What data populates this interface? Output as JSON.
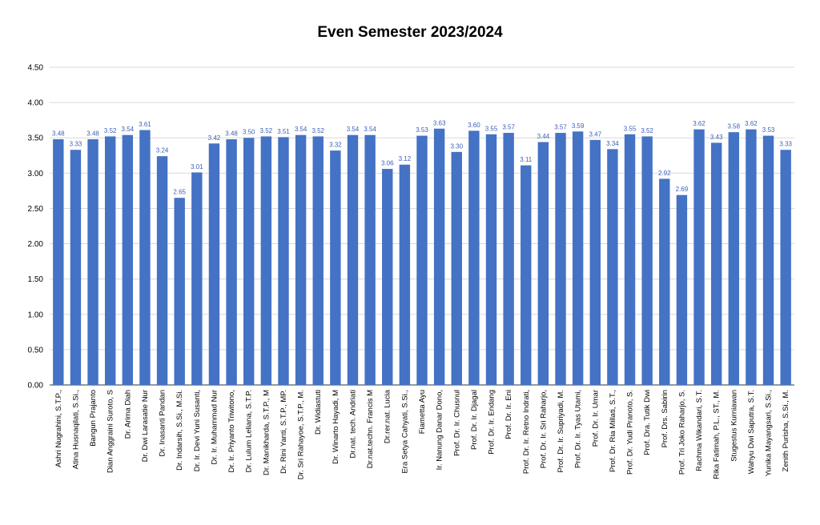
{
  "chart_data": {
    "type": "bar",
    "title": "Even Semester 2023/2024",
    "xlabel": "",
    "ylabel": "",
    "ylim": [
      0,
      4.5
    ],
    "yticks": [
      "0.00",
      "0.50",
      "1.00",
      "1.50",
      "2.00",
      "2.50",
      "3.00",
      "3.50",
      "4.00",
      "4.50"
    ],
    "grid": true,
    "bar_color": "#4472c4",
    "label_color": "#3b5fb8",
    "categories": [
      "Ashri Nugrahini, S.T.P.,",
      "Atina Husnaqilati, S.Si.,",
      "Bangun Prajanto",
      "Dian Anggraini Suroto, S",
      "Dr. Arima Diah",
      "Dr. Dwi Larasatie Nur",
      "Dr. Inasanti Pandan",
      "Dr. Indarsih, S.Si., M.Si.",
      "Dr. Ir. Devi Yuni Susanti,",
      "Dr. Ir. Muhammad Nur",
      "Dr. Ir. Priyanto Triwitono,",
      "Dr. Lulum Leliana, S.T.P.",
      "Dr. Manikharda, S.T.P., M",
      "Dr. Rini Yanti, S.T.P., MP.",
      "Dr. Sri Rahayoe, S.T.P., M.",
      "Dr. Widiastuti",
      "Dr. Winarto Hayadi, M",
      "Dr.nat. tech. Andriati",
      "Dr.nat.techn. Francis M",
      "Dr.rer.nat. Lucia",
      "Era Setya Cahyati, S.Si.,",
      "Fiametta Ayu",
      "Ir. Nanung Danar Dono,",
      "Prof. Dr. Ir. Chusnul",
      "Prof. Dr. Ir. Djagal",
      "Prof. Dr. Ir. Endang",
      "Prof. Dr. Ir. Eni",
      "Prof. Dr. Ir. Retno Indrati,",
      "Prof. Dr. Ir. Sri Raharjo,",
      "Prof. Dr. Ir. Supriyadi, M.",
      "Prof. Dr. Ir. Tyas Utami,",
      "Prof. Dr. Ir. Umar",
      "Prof. Dr. Ria Millati, S.T.,",
      "Prof. Dr. Yudi Pranoto, S.",
      "Prof. Dra. Tutik Dwi",
      "Prof. Drs. Sabirin",
      "Prof. Tri Joko Raharjo, S.",
      "Rachma Wikandari, S.T.",
      "Rika Fatimah, P.L., ST., M.",
      "Stugestus Kurniawan",
      "Wahyu Dwi Saputra, S.T.",
      "Yunika Mayangsari, S.Si.,",
      "Zenith Purisha, S.Si., M."
    ],
    "values": [
      3.48,
      3.33,
      3.48,
      3.52,
      3.54,
      3.61,
      3.24,
      2.65,
      3.01,
      3.42,
      3.48,
      3.5,
      3.52,
      3.51,
      3.54,
      3.52,
      3.32,
      3.54,
      3.54,
      3.06,
      3.12,
      3.53,
      3.63,
      3.3,
      3.6,
      3.55,
      3.57,
      3.11,
      3.44,
      3.57,
      3.59,
      3.47,
      3.34,
      3.55,
      3.52,
      2.92,
      2.69,
      3.62,
      3.43,
      3.58,
      3.62,
      3.53,
      3.33
    ],
    "value_labels": [
      "3.48",
      "3.33",
      "3.48",
      "3.52",
      "3.54",
      "3.61",
      "3.24",
      "2.65",
      "3.01",
      "3.42",
      "3.48",
      "3.50",
      "3.52",
      "3.51",
      "3.54",
      "3.52",
      "3.32",
      "3.54",
      "3.54",
      "3.06",
      "3.12",
      "3.53",
      "3.63",
      "3.30",
      "3.60",
      "3.55",
      "3.57",
      "3.11",
      "3.44",
      "3.57",
      "3.59",
      "3.47",
      "3.34",
      "3.55",
      "3.52",
      "2.92",
      "2.69",
      "3.62",
      "3.43",
      "3.58",
      "3.62",
      "3.53",
      "3.33"
    ]
  }
}
